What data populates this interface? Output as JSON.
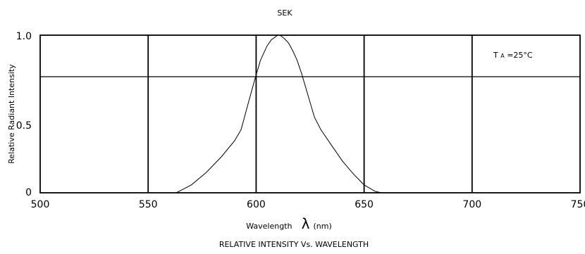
{
  "chart_data": {
    "type": "line",
    "title": "SEK",
    "caption": "RELATIVE INTENSITY Vs. WAVELENGTH",
    "xlabel": "Wavelength",
    "xlabel_symbol": "λ",
    "xlabel_unit": "(nm)",
    "ylabel": "Relative Radiant Intensity",
    "annotation": "TA=25°C",
    "annotation_parts": {
      "t": "T",
      "sub": "A",
      "rest": "=25°C"
    },
    "xlim": [
      500,
      750
    ],
    "ylim": [
      0,
      1.0
    ],
    "x_ticks": [
      500,
      550,
      600,
      650,
      700,
      750
    ],
    "x_tick_labels": [
      "500",
      "550",
      "600",
      "650",
      "700",
      "750"
    ],
    "y_ticks": [
      0,
      0.5,
      1.0
    ],
    "y_tick_labels": [
      "0",
      "0.5",
      "1.0"
    ],
    "grid": true,
    "series": [
      {
        "x": [
          563,
          570,
          577,
          584,
          590,
          593,
          596,
          599,
          602,
          605,
          607,
          609,
          610,
          611,
          613,
          615,
          617,
          619,
          621,
          624,
          627,
          630,
          635,
          640,
          645,
          650,
          655,
          658
        ],
        "y": [
          0.0,
          0.05,
          0.13,
          0.23,
          0.33,
          0.4,
          0.55,
          0.7,
          0.84,
          0.93,
          0.97,
          0.99,
          1.0,
          1.0,
          0.98,
          0.95,
          0.9,
          0.84,
          0.76,
          0.62,
          0.48,
          0.4,
          0.3,
          0.2,
          0.12,
          0.05,
          0.01,
          0.0
        ]
      }
    ]
  }
}
